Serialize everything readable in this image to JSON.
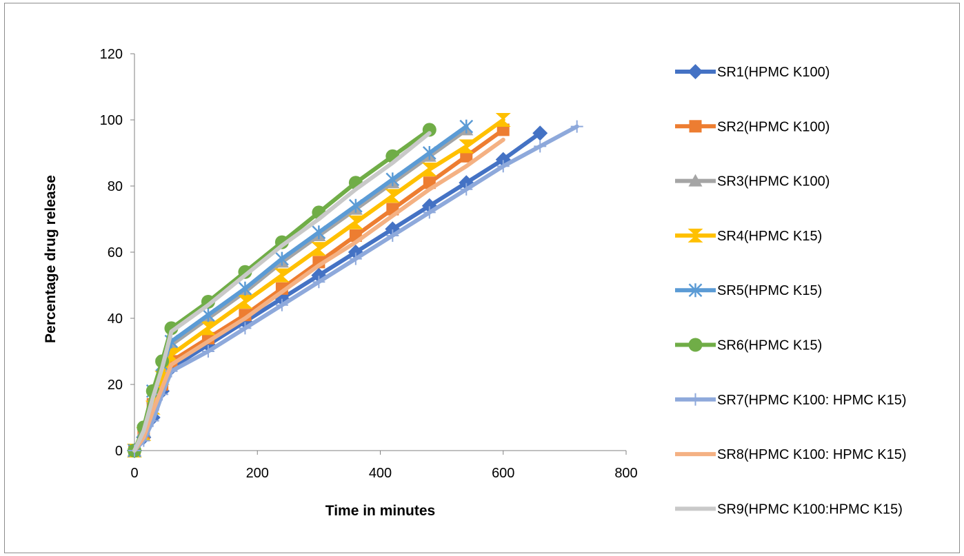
{
  "chart_data": {
    "type": "line",
    "title": "",
    "xlabel": "Time in minutes",
    "ylabel": "Percentage drug release",
    "xlim": [
      0,
      800
    ],
    "ylim": [
      0,
      120
    ],
    "xticks": [
      "0",
      "200",
      "400",
      "600",
      "800"
    ],
    "yticks": [
      "0",
      "20",
      "40",
      "60",
      "80",
      "100",
      "120"
    ],
    "grid": false,
    "legend_position": "right",
    "series": [
      {
        "name": "SR1(HPMC K100)",
        "color": "#4472c4",
        "marker": "diamond",
        "x": [
          0,
          15,
          30,
          45,
          60,
          120,
          180,
          240,
          300,
          360,
          420,
          480,
          540,
          600,
          660
        ],
        "y": [
          0,
          4,
          10,
          18,
          25,
          32,
          39,
          46,
          53,
          60,
          67,
          74,
          81,
          88,
          96
        ]
      },
      {
        "name": "SR2(HPMC K100)",
        "color": "#ed7d31",
        "marker": "square",
        "x": [
          0,
          15,
          30,
          45,
          60,
          120,
          180,
          240,
          300,
          360,
          420,
          480,
          540,
          600
        ],
        "y": [
          0,
          5,
          14,
          20,
          27,
          34,
          41,
          49,
          57,
          65,
          73,
          81,
          89,
          97
        ]
      },
      {
        "name": "SR3(HPMC K100)",
        "color": "#a5a5a5",
        "marker": "triangle",
        "x": [
          0,
          15,
          30,
          45,
          60,
          120,
          180,
          240,
          300,
          360,
          420,
          480,
          540
        ],
        "y": [
          0,
          6,
          16,
          24,
          32,
          40,
          48,
          57,
          65,
          73,
          81,
          89,
          97
        ]
      },
      {
        "name": "SR4(HPMC K15)",
        "color": "#ffc000",
        "marker": "hourglass",
        "x": [
          0,
          15,
          30,
          45,
          60,
          120,
          180,
          240,
          300,
          360,
          420,
          480,
          540,
          600
        ],
        "y": [
          0,
          5,
          13,
          22,
          29,
          37,
          45,
          53,
          61,
          69,
          77,
          85,
          92,
          100
        ]
      },
      {
        "name": "SR5(HPMC K15)",
        "color": "#5b9bd5",
        "marker": "star",
        "x": [
          0,
          15,
          30,
          45,
          60,
          120,
          180,
          240,
          300,
          360,
          420,
          480,
          540
        ],
        "y": [
          0,
          6,
          18,
          26,
          33,
          41,
          49,
          58,
          66,
          74,
          82,
          90,
          98
        ]
      },
      {
        "name": "SR6(HPMC K15)",
        "color": "#70ad47",
        "marker": "circle",
        "x": [
          0,
          15,
          30,
          45,
          60,
          120,
          180,
          240,
          300,
          360,
          420,
          480
        ],
        "y": [
          0,
          7,
          18,
          27,
          37,
          45,
          54,
          63,
          72,
          81,
          89,
          97
        ]
      },
      {
        "name": "SR7(HPMC K100: HPMC K15)",
        "color": "#8ea9db",
        "marker": "plus",
        "x": [
          0,
          15,
          30,
          45,
          60,
          120,
          180,
          240,
          300,
          360,
          420,
          480,
          540,
          600,
          660,
          720
        ],
        "y": [
          0,
          3,
          9,
          17,
          24,
          30,
          37,
          44,
          51,
          58,
          65,
          72,
          79,
          86,
          92,
          98
        ]
      },
      {
        "name": "SR8(HPMC K100: HPMC K15)",
        "color": "#f4b183",
        "marker": "none",
        "x": [
          0,
          15,
          30,
          45,
          60,
          120,
          180,
          240,
          300,
          360,
          420,
          480,
          540,
          600
        ],
        "y": [
          0,
          4,
          12,
          19,
          26,
          33,
          40,
          48,
          56,
          63,
          71,
          79,
          86,
          94
        ]
      },
      {
        "name": "SR9(HPMC K100:HPMC K15)",
        "color": "#c9c9c9",
        "marker": "none",
        "x": [
          0,
          15,
          30,
          45,
          60,
          120,
          180,
          240,
          300,
          360,
          420,
          480
        ],
        "y": [
          0,
          6,
          16,
          25,
          36,
          44,
          53,
          62,
          70,
          79,
          87,
          96
        ]
      }
    ]
  }
}
